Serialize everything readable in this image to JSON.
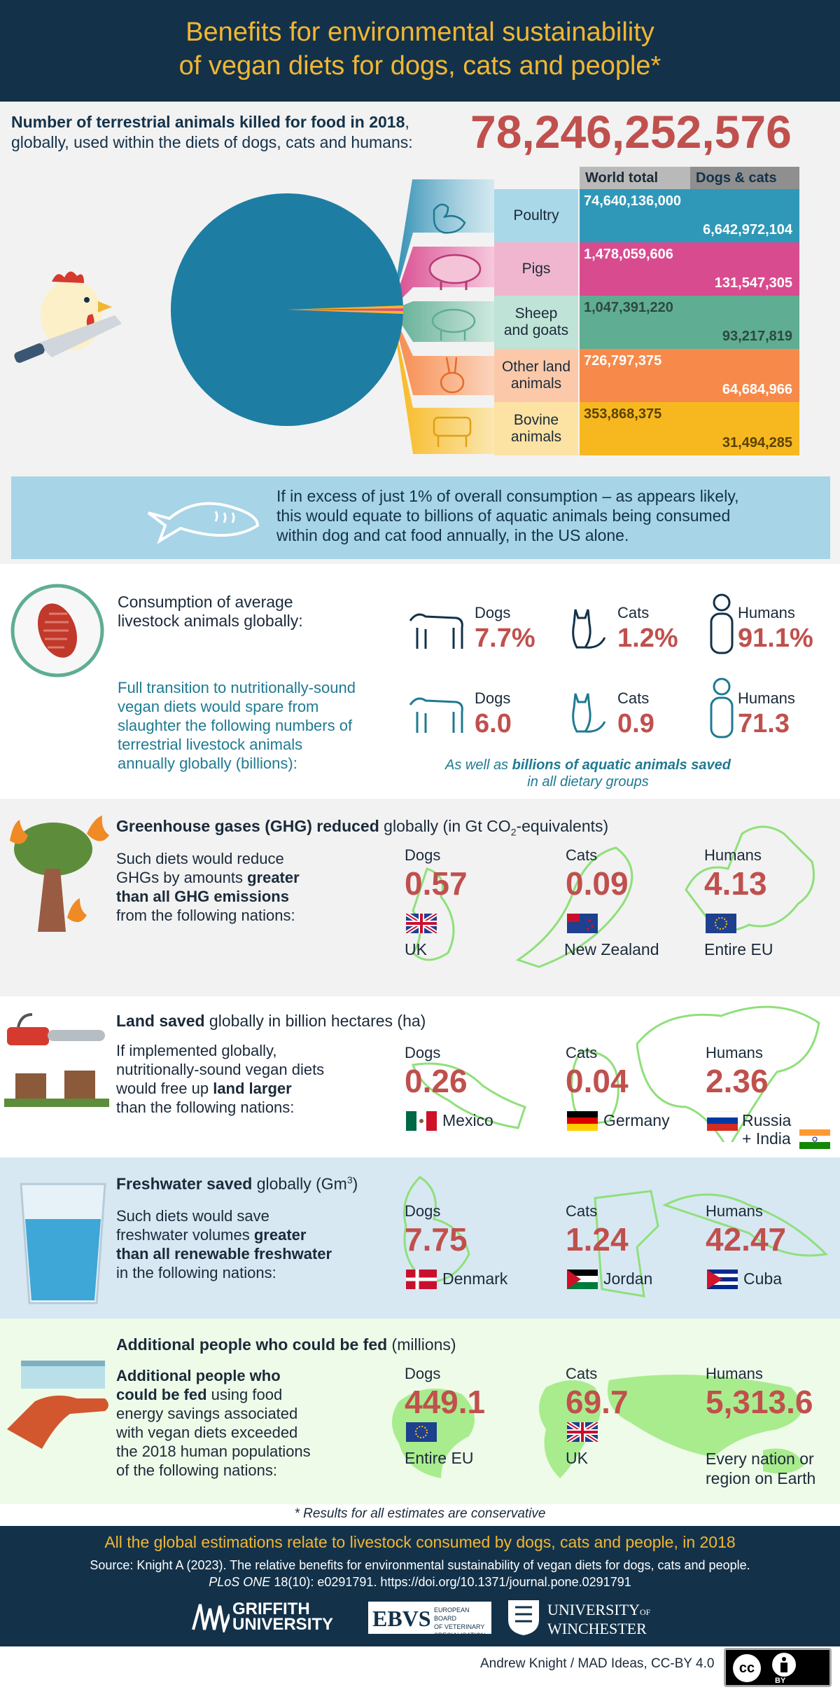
{
  "header": {
    "title_line1": "Benefits for environmental sustainability",
    "title_line2": "of vegan diets for dogs, cats and people*"
  },
  "killed": {
    "label_bold": "Number of terrestrial animals killed for food in 2018",
    "label_rest": ",",
    "label_line2": "globally, used within the diets of dogs, cats and humans:",
    "total": "78,246,252,576"
  },
  "table": {
    "col_world": "World total",
    "col_dogs_cats": "Dogs & cats",
    "rows": [
      {
        "name": "Poultry",
        "world": "74,640,136,000",
        "dogs_cats": "6,642,972,104",
        "color": "#2f98b8",
        "icon": "chicken-icon"
      },
      {
        "name": "Pigs",
        "world": "1,478,059,606",
        "dogs_cats": "131,547,305",
        "color": "#d94b8f",
        "icon": "pig-icon"
      },
      {
        "name_l1": "Sheep",
        "name_l2": "and goats",
        "world": "1,047,391,220",
        "dogs_cats": "93,217,819",
        "color": "#5fad93",
        "icon": "sheep-icon"
      },
      {
        "name_l1": "Other land",
        "name_l2": "animals",
        "world": "726,797,375",
        "dogs_cats": "64,684,966",
        "color": "#f78a4a",
        "icon": "rabbit-icon"
      },
      {
        "name_l1": "Bovine",
        "name_l2": "animals",
        "world": "353,868,375",
        "dogs_cats": "31,494,285",
        "color": "#f7b81f",
        "icon": "cow-icon"
      }
    ]
  },
  "aquatic_note": {
    "line1": "If in excess of just 1% of overall consumption – as appears likely,",
    "line2": "this would equate to billions of aquatic animals being consumed",
    "line3": "within dog and cat food annually, in the US alone."
  },
  "consumption": {
    "label_l1": "Consumption of average",
    "label_l2": "livestock animals globally:",
    "dogs": {
      "name": "Dogs",
      "value": "7.7%"
    },
    "cats": {
      "name": "Cats",
      "value": "1.2%"
    },
    "humans": {
      "name": "Humans",
      "value": "91.1%"
    }
  },
  "spared": {
    "l1": "Full transition to nutritionally-sound",
    "l2": "vegan diets would spare from",
    "l3": "slaughter the following numbers of",
    "l4": "terrestrial livestock animals",
    "l5": "annually globally (billions):",
    "dogs": {
      "name": "Dogs",
      "value": "6.0"
    },
    "cats": {
      "name": "Cats",
      "value": "0.9"
    },
    "humans": {
      "name": "Humans",
      "value": "71.3"
    },
    "note_pre": "As well as ",
    "note_bold": "billions of aquatic animals saved",
    "note_l2": "in all dietary groups"
  },
  "ghg": {
    "title_bold": "Greenhouse gases (GHG) reduced",
    "title_rest": " globally (in Gt CO",
    "sub": "2",
    "title_end": "-equivalents)",
    "d1": "Such diets would reduce",
    "d2_pre": "GHGs by amounts ",
    "d2_bold": "greater",
    "d3_bold": "than all GHG emissions",
    "d4": "from the following nations:",
    "dogs": {
      "name": "Dogs",
      "value": "0.57",
      "nation": "UK"
    },
    "cats": {
      "name": "Cats",
      "value": "0.09",
      "nation": "New Zealand"
    },
    "humans": {
      "name": "Humans",
      "value": "4.13",
      "nation": "Entire EU"
    }
  },
  "land": {
    "title_bold": "Land saved",
    "title_rest": " globally in billion hectares (ha)",
    "d1": "If implemented globally,",
    "d2": "nutritionally-sound vegan diets",
    "d3_pre": "would free up ",
    "d3_bold": "land larger",
    "d4": "than the following nations:",
    "dogs": {
      "name": "Dogs",
      "value": "0.26",
      "nation": "Mexico"
    },
    "cats": {
      "name": "Cats",
      "value": "0.04",
      "nation": "Germany"
    },
    "humans": {
      "name": "Humans",
      "value": "2.36",
      "nation_l1": "Russia",
      "nation_l2": "+ India"
    }
  },
  "water": {
    "title_bold": "Freshwater saved",
    "title_rest": " globally (Gm",
    "sup": "3",
    "title_end": ")",
    "d1": "Such diets would save",
    "d2_pre": "freshwater volumes ",
    "d2_bold": "greater",
    "d3_bold": "than all renewable freshwater",
    "d4": "in the following nations:",
    "dogs": {
      "name": "Dogs",
      "value": "7.75",
      "nation": "Denmark"
    },
    "cats": {
      "name": "Cats",
      "value": "1.24",
      "nation": "Jordan"
    },
    "humans": {
      "name": "Humans",
      "value": "42.47",
      "nation": "Cuba"
    }
  },
  "fed": {
    "title_bold": "Additional people who could be fed",
    "title_rest": " (millions)",
    "d1_bold": "Additional people who",
    "d2_bold": "could be fed",
    "d2_rest": " using food",
    "d3": "energy savings associated",
    "d4": "with vegan diets exceeded",
    "d5": "the 2018 human populations",
    "d6": "of the following nations:",
    "dogs": {
      "name": "Dogs",
      "value": "449.1",
      "nation": "Entire EU"
    },
    "cats": {
      "name": "Cats",
      "value": "69.7",
      "nation": "UK"
    },
    "humans": {
      "name": "Humans",
      "value": "5,313.6",
      "nation_l1": "Every nation or",
      "nation_l2": "region on Earth"
    }
  },
  "footnote": "* Results for all estimates are conservative",
  "footer": {
    "headline": "All the global estimations relate to livestock consumed by dogs, cats and people, in 2018",
    "source_l1": "Source: Knight A (2023). The relative benefits for environmental sustainability of vegan diets for dogs, cats and people.",
    "source_journal": "PLoS ONE",
    "source_l2_rest": " 18(10): e0291791. https://doi.org/10.1371/journal.pone.0291791",
    "logo1_l1": "GRIFFITH",
    "logo1_l2": "UNIVERSITY",
    "logo2_main": "EBVS",
    "logo2_l1": "EUROPEAN BOARD",
    "logo2_l2": "OF VETERINARY",
    "logo2_l3": "SPECIALISATION",
    "logo3_l1": "UNIVERSITY",
    "logo3_of": "OF",
    "logo3_l2": "WINCHESTER"
  },
  "credit": "Andrew Knight / MAD Ideas, CC-BY 4.0",
  "license": {
    "cc": "cc",
    "by": "BY"
  }
}
